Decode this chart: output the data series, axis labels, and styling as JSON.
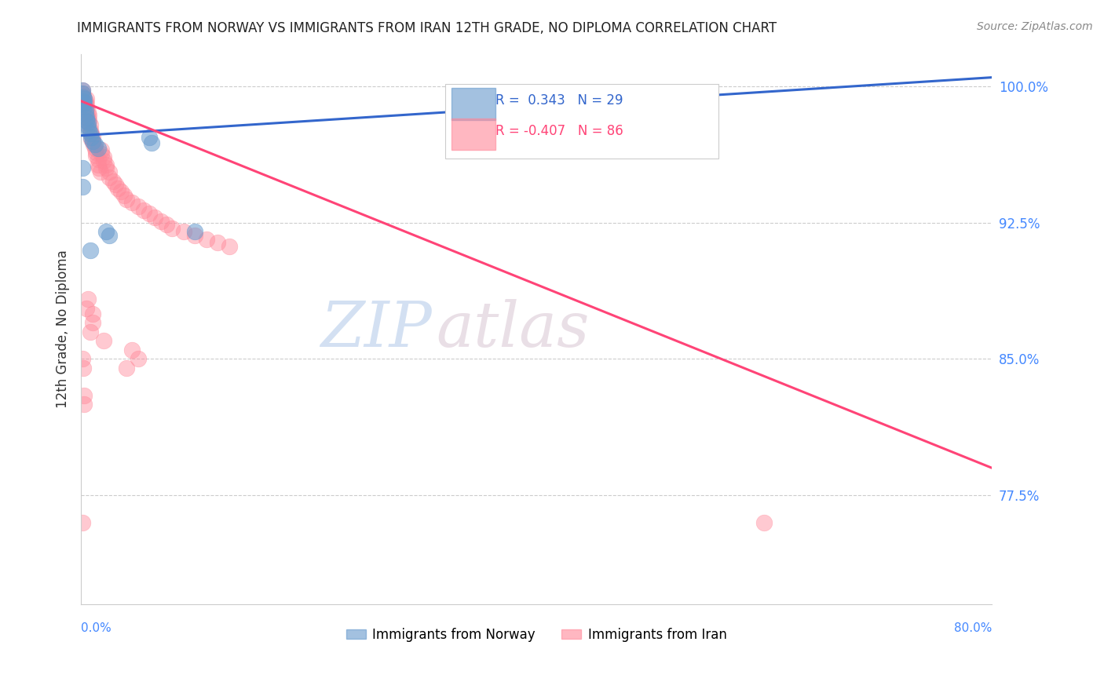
{
  "title": "IMMIGRANTS FROM NORWAY VS IMMIGRANTS FROM IRAN 12TH GRADE, NO DIPLOMA CORRELATION CHART",
  "source": "Source: ZipAtlas.com",
  "ylabel": "12th Grade, No Diploma",
  "ytick_vals": [
    0.775,
    0.85,
    0.925,
    1.0
  ],
  "ytick_labels": [
    "77.5%",
    "85.0%",
    "92.5%",
    "100.0%"
  ],
  "xmin": 0.0,
  "xmax": 0.8,
  "ymin": 0.715,
  "ymax": 1.018,
  "norway_R": 0.343,
  "norway_N": 29,
  "iran_R": -0.407,
  "iran_N": 86,
  "norway_color": "#6699CC",
  "iran_color": "#FF8899",
  "norway_line_color": "#3366CC",
  "iran_line_color": "#FF4477",
  "legend_label_norway": "Immigrants from Norway",
  "legend_label_iran": "Immigrants from Iran",
  "watermark_zip": "ZIP",
  "watermark_atlas": "atlas",
  "background_color": "#ffffff",
  "norway_trend": [
    0.0,
    0.8,
    0.973,
    1.005
  ],
  "iran_trend": [
    0.0,
    0.8,
    0.992,
    0.79
  ],
  "norway_points": [
    [
      0.001,
      0.998
    ],
    [
      0.001,
      0.996
    ],
    [
      0.002,
      0.994
    ],
    [
      0.002,
      0.992
    ],
    [
      0.002,
      0.99
    ],
    [
      0.003,
      0.993
    ],
    [
      0.003,
      0.991
    ],
    [
      0.003,
      0.989
    ],
    [
      0.004,
      0.987
    ],
    [
      0.004,
      0.985
    ],
    [
      0.005,
      0.983
    ],
    [
      0.005,
      0.981
    ],
    [
      0.006,
      0.98
    ],
    [
      0.006,
      0.978
    ],
    [
      0.007,
      0.976
    ],
    [
      0.008,
      0.974
    ],
    [
      0.009,
      0.972
    ],
    [
      0.01,
      0.97
    ],
    [
      0.012,
      0.968
    ],
    [
      0.015,
      0.966
    ],
    [
      0.022,
      0.92
    ],
    [
      0.025,
      0.918
    ],
    [
      0.06,
      0.972
    ],
    [
      0.062,
      0.969
    ],
    [
      0.1,
      0.92
    ],
    [
      0.35,
      0.97
    ],
    [
      0.001,
      0.955
    ],
    [
      0.001,
      0.945
    ],
    [
      0.008,
      0.91
    ]
  ],
  "iran_points": [
    [
      0.001,
      0.998
    ],
    [
      0.001,
      0.996
    ],
    [
      0.001,
      0.994
    ],
    [
      0.001,
      0.993
    ],
    [
      0.001,
      0.992
    ],
    [
      0.001,
      0.99
    ],
    [
      0.002,
      0.995
    ],
    [
      0.002,
      0.993
    ],
    [
      0.002,
      0.991
    ],
    [
      0.002,
      0.989
    ],
    [
      0.002,
      0.987
    ],
    [
      0.002,
      0.985
    ],
    [
      0.002,
      0.983
    ],
    [
      0.003,
      0.988
    ],
    [
      0.003,
      0.986
    ],
    [
      0.003,
      0.984
    ],
    [
      0.003,
      0.982
    ],
    [
      0.003,
      0.98
    ],
    [
      0.004,
      0.992
    ],
    [
      0.004,
      0.99
    ],
    [
      0.004,
      0.987
    ],
    [
      0.004,
      0.985
    ],
    [
      0.005,
      0.993
    ],
    [
      0.005,
      0.99
    ],
    [
      0.005,
      0.988
    ],
    [
      0.005,
      0.985
    ],
    [
      0.006,
      0.986
    ],
    [
      0.006,
      0.983
    ],
    [
      0.007,
      0.984
    ],
    [
      0.007,
      0.981
    ],
    [
      0.008,
      0.979
    ],
    [
      0.008,
      0.976
    ],
    [
      0.009,
      0.974
    ],
    [
      0.009,
      0.971
    ],
    [
      0.01,
      0.972
    ],
    [
      0.01,
      0.97
    ],
    [
      0.011,
      0.968
    ],
    [
      0.012,
      0.966
    ],
    [
      0.013,
      0.964
    ],
    [
      0.013,
      0.962
    ],
    [
      0.015,
      0.96
    ],
    [
      0.015,
      0.957
    ],
    [
      0.016,
      0.955
    ],
    [
      0.017,
      0.953
    ],
    [
      0.018,
      0.965
    ],
    [
      0.018,
      0.963
    ],
    [
      0.02,
      0.961
    ],
    [
      0.02,
      0.959
    ],
    [
      0.022,
      0.957
    ],
    [
      0.022,
      0.955
    ],
    [
      0.025,
      0.953
    ],
    [
      0.025,
      0.95
    ],
    [
      0.028,
      0.948
    ],
    [
      0.03,
      0.946
    ],
    [
      0.032,
      0.944
    ],
    [
      0.035,
      0.942
    ],
    [
      0.038,
      0.94
    ],
    [
      0.04,
      0.938
    ],
    [
      0.045,
      0.936
    ],
    [
      0.05,
      0.934
    ],
    [
      0.055,
      0.932
    ],
    [
      0.06,
      0.93
    ],
    [
      0.065,
      0.928
    ],
    [
      0.07,
      0.926
    ],
    [
      0.075,
      0.924
    ],
    [
      0.08,
      0.922
    ],
    [
      0.09,
      0.92
    ],
    [
      0.1,
      0.918
    ],
    [
      0.11,
      0.916
    ],
    [
      0.12,
      0.914
    ],
    [
      0.13,
      0.912
    ],
    [
      0.001,
      0.85
    ],
    [
      0.002,
      0.845
    ],
    [
      0.008,
      0.865
    ],
    [
      0.01,
      0.875
    ],
    [
      0.01,
      0.87
    ],
    [
      0.003,
      0.83
    ],
    [
      0.003,
      0.825
    ],
    [
      0.02,
      0.86
    ],
    [
      0.045,
      0.855
    ],
    [
      0.05,
      0.85
    ],
    [
      0.6,
      0.76
    ],
    [
      0.001,
      0.76
    ],
    [
      0.006,
      0.883
    ],
    [
      0.005,
      0.878
    ],
    [
      0.04,
      0.845
    ]
  ]
}
